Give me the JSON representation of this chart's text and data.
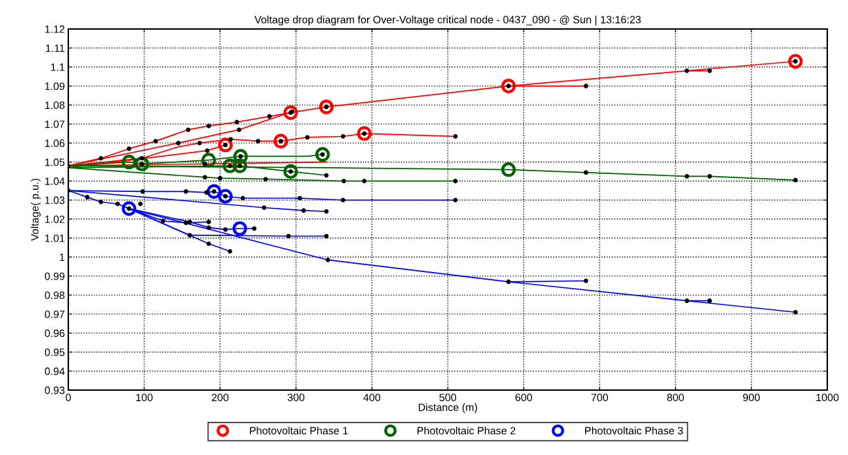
{
  "chart_data": {
    "type": "line",
    "title": "Voltage drop diagram for Over-Voltage critical node - 0437_090 - @ Sun | 13:16:23",
    "xlabel": "Distance (m)",
    "ylabel": "Voltage( p.u.)",
    "xlim": [
      0,
      1000
    ],
    "xticks": [
      0,
      100,
      200,
      300,
      400,
      500,
      600,
      700,
      800,
      900,
      1000
    ],
    "ylim": [
      0.93,
      1.12
    ],
    "yticks": [
      0.93,
      0.94,
      0.95,
      0.96,
      0.97,
      0.98,
      0.99,
      1,
      1.01,
      1.02,
      1.03,
      1.04,
      1.05,
      1.06,
      1.07,
      1.08,
      1.09,
      1.1,
      1.11,
      1.12
    ],
    "grid": true,
    "legend": "bottom",
    "line_style": "solid",
    "series": [
      {
        "color": "#ff0000",
        "x": [
          0,
          43,
          80,
          115,
          158,
          185,
          222,
          265,
          293,
          340,
          580,
          815,
          958
        ],
        "values": [
          1.048,
          1.052,
          1.057,
          1.061,
          1.067,
          1.069,
          1.071,
          1.074,
          1.076,
          1.079,
          1.09,
          1.098,
          1.103
        ]
      },
      {
        "color": "#ff0000",
        "x": [
          580,
          682
        ],
        "values": [
          1.09,
          1.09
        ]
      },
      {
        "color": "#ff0000",
        "x": [
          815,
          845
        ],
        "values": [
          1.098,
          1.098
        ]
      },
      {
        "color": "#ff0000",
        "x": [
          0,
          145,
          225,
          295
        ],
        "values": [
          1.048,
          1.06,
          1.067,
          1.0765
        ]
      },
      {
        "color": "#ff0000",
        "x": [
          0,
          183,
          207
        ],
        "values": [
          1.047,
          1.056,
          1.059
        ]
      },
      {
        "color": "#ff0000",
        "x": [
          0,
          97,
          145,
          173,
          214,
          250,
          280,
          315,
          362,
          390,
          510
        ],
        "values": [
          1.048,
          1.052,
          1.058,
          1.06,
          1.062,
          1.061,
          1.061,
          1.063,
          1.0635,
          1.065,
          1.0635
        ]
      },
      {
        "color": "#ff0000",
        "x": [
          0,
          180,
          340
        ],
        "values": [
          1.048,
          1.049,
          1.05
        ]
      },
      {
        "color": "#006400",
        "x": [
          0,
          80,
          97,
          185,
          227,
          315,
          335
        ],
        "values": [
          1.048,
          1.05,
          1.049,
          1.051,
          1.053,
          1.053,
          1.054
        ]
      },
      {
        "color": "#006400",
        "x": [
          0,
          213,
          226,
          293,
          340
        ],
        "values": [
          1.047,
          1.048,
          1.048,
          1.045,
          1.043
        ]
      },
      {
        "color": "#006400",
        "x": [
          0,
          340,
          580,
          682,
          815,
          845,
          958
        ],
        "values": [
          1.048,
          1.047,
          1.046,
          1.0445,
          1.0425,
          1.0425,
          1.0405
        ]
      },
      {
        "color": "#006400",
        "x": [
          0,
          180,
          200,
          260,
          363,
          390,
          510
        ],
        "values": [
          1.047,
          1.042,
          1.0415,
          1.041,
          1.04,
          1.04,
          1.04
        ]
      },
      {
        "color": "#0000ff",
        "x": [
          0,
          98,
          155,
          182,
          192,
          207,
          230,
          305,
          362,
          510
        ],
        "values": [
          1.035,
          1.0345,
          1.0345,
          1.034,
          1.0345,
          1.032,
          1.031,
          1.031,
          1.03,
          1.03
        ]
      },
      {
        "color": "#0000ff",
        "x": [
          0,
          258,
          310,
          340
        ],
        "values": [
          1.035,
          1.026,
          1.0245,
          1.024
        ]
      },
      {
        "color": "#0000ff",
        "x": [
          0,
          25,
          43,
          65,
          80,
          125,
          155,
          185
        ],
        "values": [
          1.035,
          1.0315,
          1.029,
          1.028,
          1.0255,
          1.019,
          1.018,
          1.0185
        ]
      },
      {
        "color": "#0000ff",
        "x": [
          80,
          160,
          185,
          207,
          226,
          245
        ],
        "values": [
          1.0255,
          1.0185,
          1.0155,
          1.0145,
          1.015,
          1.015
        ]
      },
      {
        "color": "#0000ff",
        "x": [
          80,
          160,
          290,
          340
        ],
        "values": [
          1.0255,
          1.0115,
          1.011,
          1.011
        ]
      },
      {
        "color": "#0000ff",
        "x": [
          80,
          185,
          213
        ],
        "values": [
          1.0255,
          1.007,
          1.003
        ]
      },
      {
        "color": "#0000ff",
        "x": [
          80,
          342,
          580,
          815,
          958
        ],
        "values": [
          1.0255,
          0.9985,
          0.987,
          0.977,
          0.971
        ]
      },
      {
        "color": "#0000ff",
        "x": [
          580,
          682
        ],
        "values": [
          0.987,
          0.9875
        ]
      },
      {
        "color": "#0000ff",
        "x": [
          815,
          845
        ],
        "values": [
          0.977,
          0.977
        ]
      },
      {
        "type": "scatter",
        "color": "#000000",
        "x": [
          0,
          43,
          80,
          115,
          158,
          185,
          222,
          265,
          293,
          340,
          580,
          815,
          958,
          682,
          845,
          145,
          225,
          295,
          183,
          207,
          97,
          173,
          214,
          250,
          280,
          315,
          362,
          390,
          510,
          180,
          97,
          227,
          335,
          213,
          226,
          340,
          682,
          815,
          845,
          958,
          180,
          200,
          260,
          363,
          390,
          510,
          0,
          98,
          155,
          182,
          192,
          207,
          230,
          305,
          362,
          510,
          258,
          310,
          340,
          25,
          43,
          65,
          80,
          125,
          155,
          185,
          160,
          185,
          207,
          245,
          160,
          290,
          340,
          185,
          213,
          342,
          580,
          682,
          815,
          845,
          958,
          95,
          293
        ],
        "values": [
          1.048,
          1.052,
          1.057,
          1.061,
          1.067,
          1.069,
          1.071,
          1.074,
          1.076,
          1.079,
          1.09,
          1.098,
          1.103,
          1.09,
          1.098,
          1.06,
          1.067,
          1.0765,
          1.056,
          1.059,
          1.052,
          1.06,
          1.062,
          1.061,
          1.061,
          1.063,
          1.0635,
          1.065,
          1.0635,
          1.049,
          1.049,
          1.053,
          1.054,
          1.048,
          1.048,
          1.043,
          1.0445,
          1.0425,
          1.0425,
          1.0405,
          1.042,
          1.0415,
          1.041,
          1.04,
          1.04,
          1.04,
          1.035,
          1.0345,
          1.0345,
          1.034,
          1.0345,
          1.032,
          1.031,
          1.031,
          1.03,
          1.03,
          1.026,
          1.0245,
          1.024,
          1.0315,
          1.029,
          1.028,
          1.0255,
          1.019,
          1.018,
          1.0185,
          1.0185,
          1.0155,
          1.0145,
          1.015,
          1.0115,
          1.011,
          1.011,
          1.007,
          1.003,
          0.9985,
          0.987,
          0.9875,
          0.977,
          0.977,
          0.971,
          1.028,
          1.045
        ]
      },
      {
        "type": "scatter",
        "name": "Photovoltaic Phase 1",
        "color": "#ff0000",
        "marker": "circle",
        "x": [
          207,
          280,
          293,
          340,
          390,
          580,
          958
        ],
        "values": [
          1.059,
          1.061,
          1.076,
          1.079,
          1.065,
          1.09,
          1.103
        ]
      },
      {
        "type": "scatter",
        "name": "Photovoltaic Phase 2",
        "color": "#006400",
        "marker": "circle",
        "x": [
          80,
          97,
          185,
          213,
          226,
          227,
          293,
          335,
          580
        ],
        "values": [
          1.05,
          1.049,
          1.051,
          1.048,
          1.048,
          1.053,
          1.045,
          1.054,
          1.046
        ]
      },
      {
        "type": "scatter",
        "name": "Photovoltaic Phase 3",
        "color": "#0000ff",
        "marker": "circle",
        "x": [
          80,
          192,
          207,
          226
        ],
        "values": [
          1.0255,
          1.0345,
          1.032,
          1.015
        ]
      }
    ]
  }
}
